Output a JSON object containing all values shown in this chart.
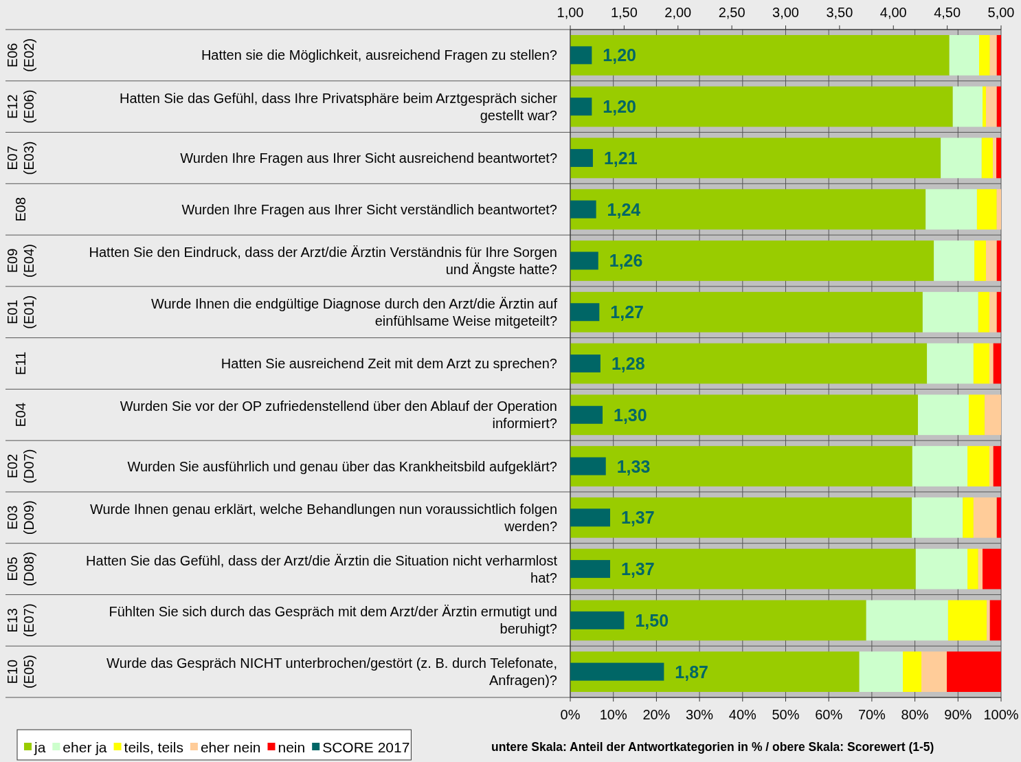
{
  "chart_data": [
    {
      "type": "bar",
      "orientation": "horizontal",
      "stacked": true,
      "categories": [
        "Hatten sie die Möglichkeit, ausreichend Fragen zu stellen?",
        "Hatten Sie das Gefühl, dass Ihre Privatsphäre beim Arztgespräch sicher gestellt war?",
        "Wurden Ihre Fragen aus Ihrer Sicht ausreichend beantwortet?",
        "Wurden Ihre Fragen aus Ihrer Sicht verständlich beantwortet?",
        "Hatten Sie den Eindruck, dass der Arzt/die Ärztin Verständnis für Ihre Sorgen und Ängste hatte?",
        "Wurde Ihnen die endgültige Diagnose durch den Arzt/die Ärztin auf einfühlsame Weise mitgeteilt?",
        "Hatten Sie ausreichend Zeit mit dem Arzt zu sprechen?",
        "Wurden Sie vor der OP zufriedenstellend über den Ablauf der Operation informiert?",
        "Wurden Sie ausführlich und genau über das Krankheitsbild aufgeklärt?",
        "Wurde Ihnen genau erklärt, welche Behandlungen nun voraussichtlich folgen werden?",
        "Hatten Sie das Gefühl, dass der Arzt/die Ärztin die Situation nicht verharmlost hat?",
        "Fühlten Sie sich durch das Gespräch mit dem Arzt/der Ärztin ermutigt und beruhigt?",
        "Wurde das Gespräch NICHT unterbrochen/gestört (z. B. durch Telefonate, Anfragen)?"
      ],
      "series": [
        {
          "name": "ja",
          "color": "#99cc00",
          "values": [
            88.0,
            88.8,
            86.0,
            82.5,
            84.4,
            81.8,
            82.8,
            80.7,
            79.4,
            79.3,
            80.2,
            68.7,
            67.1
          ]
        },
        {
          "name": "eher ja",
          "color": "#ccffcc",
          "values": [
            6.9,
            6.9,
            9.5,
            11.9,
            9.4,
            12.9,
            10.8,
            11.8,
            12.8,
            11.8,
            12.0,
            19.0,
            10.1
          ]
        },
        {
          "name": "teils, teils",
          "color": "#ffff00",
          "values": [
            2.5,
            0.8,
            2.6,
            4.6,
            2.7,
            2.6,
            3.7,
            3.7,
            5.1,
            2.5,
            2.5,
            9.0,
            4.3
          ]
        },
        {
          "name": "eher nein",
          "color": "#ffcc99",
          "values": [
            1.6,
            2.5,
            0.8,
            1.0,
            2.5,
            1.7,
            0.9,
            3.8,
            0.9,
            5.4,
            1.0,
            0.7,
            5.9
          ]
        },
        {
          "name": "nein",
          "color": "#ff0000",
          "values": [
            1.0,
            1.0,
            1.1,
            0,
            1.0,
            1.0,
            1.8,
            0,
            1.8,
            1.0,
            4.3,
            2.6,
            12.6
          ]
        }
      ],
      "xlim": [
        0,
        100
      ],
      "xticks": [
        {
          "value": 0,
          "label": "0%"
        },
        {
          "value": 10,
          "label": "10%"
        },
        {
          "value": 20,
          "label": "20%"
        },
        {
          "value": 30,
          "label": "30%"
        },
        {
          "value": 40,
          "label": "40%"
        },
        {
          "value": 50,
          "label": "50%"
        },
        {
          "value": 60,
          "label": "60%"
        },
        {
          "value": 70,
          "label": "70%"
        },
        {
          "value": 80,
          "label": "80%"
        },
        {
          "value": 90,
          "label": "90%"
        },
        {
          "value": 100,
          "label": "100%"
        }
      ],
      "grid": "x",
      "legend": "bottom left",
      "annotations": [
        "E06 (E02)",
        "E12 (E06)",
        "E07 (E03)",
        "E08",
        "E09 (E04)",
        "E01 (E01)",
        "E11",
        "E04",
        "E02 (D07)",
        "E03 (D09)",
        "E05 (D08)",
        "E13 (E07)",
        "E10 (E05)",
        "untere Skala: Anteil der Antwortkategorien in % / obere Skala: Scorewert (1-5)"
      ]
    },
    {
      "type": "bar",
      "orientation": "horizontal",
      "categories": [
        null,
        null,
        null,
        null,
        null,
        null,
        null,
        null,
        null,
        null,
        null,
        null,
        null
      ],
      "series": [
        {
          "name": "SCORE 2017",
          "color": "#006666",
          "values": [
            1.2,
            1.2,
            1.21,
            1.24,
            1.26,
            1.27,
            1.28,
            1.3,
            1.33,
            1.37,
            1.37,
            1.5,
            1.87
          ],
          "value_labels": [
            "1,20",
            "1,20",
            "1,21",
            "1,24",
            "1,26",
            "1,27",
            "1,28",
            "1,30",
            "1,33",
            "1,37",
            "1,37",
            "1,50",
            "1,87"
          ]
        }
      ],
      "xlim": [
        1,
        5
      ],
      "xticks": [
        {
          "value": 1,
          "label": "1,00"
        },
        {
          "value": 1.5,
          "label": "1,50"
        },
        {
          "value": 2,
          "label": "2,00"
        },
        {
          "value": 2.5,
          "label": "2,50"
        },
        {
          "value": 3,
          "label": "3,00"
        },
        {
          "value": 3.5,
          "label": "3,50"
        },
        {
          "value": 4,
          "label": "4,00"
        },
        {
          "value": 4.5,
          "label": "4,50"
        },
        {
          "value": 5,
          "label": "5,00"
        }
      ],
      "tick_labels": "x",
      "legend": "bottom left"
    }
  ]
}
